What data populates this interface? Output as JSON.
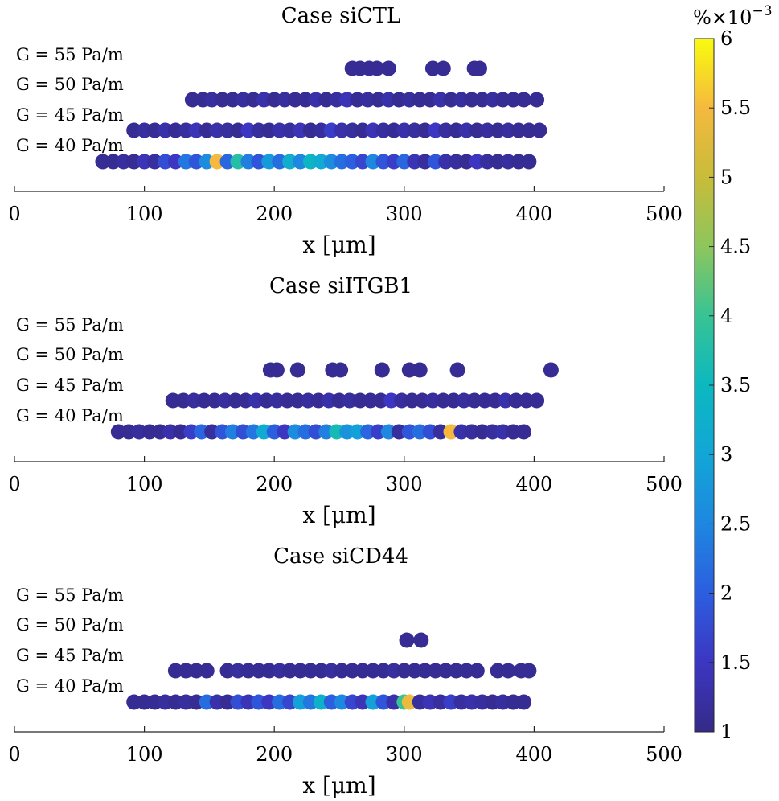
{
  "chart_data": [
    {
      "type": "scatter",
      "title": "Case siCTL",
      "xlabel": "x [μm]",
      "xlim": [
        0,
        500
      ],
      "xticks": [
        "0",
        "100",
        "200",
        "300",
        "400",
        "500"
      ],
      "rows": [
        "G = 55 Pa/m",
        "G = 50 Pa/m",
        "G = 45 Pa/m",
        "G = 40 Pa/m"
      ],
      "series": [
        {
          "row": 0,
          "x": [
            260,
            266,
            273,
            279,
            288,
            322,
            330,
            354,
            358
          ],
          "c": [
            1.1,
            1.1,
            1.1,
            1.1,
            1.1,
            1.1,
            1.1,
            1.1,
            1.1
          ]
        },
        {
          "row": 1,
          "x": [
            137,
            145,
            152,
            160,
            168,
            176,
            184,
            192,
            200,
            208,
            216,
            224,
            232,
            240,
            248,
            256,
            264,
            272,
            280,
            288,
            296,
            304,
            312,
            320,
            328,
            336,
            344,
            352,
            360,
            368,
            376,
            384,
            392,
            402
          ],
          "c": [
            1.1,
            1.1,
            1.2,
            1.1,
            1.1,
            1.2,
            1.1,
            1.3,
            1.1,
            1.2,
            1.1,
            1.1,
            1.3,
            1.1,
            1.2,
            1.4,
            1.1,
            1.2,
            1.1,
            1.3,
            1.1,
            1.2,
            1.1,
            1.1,
            1.3,
            1.1,
            1.2,
            1.1,
            1.1,
            1.2,
            1.1,
            1.1,
            1.1,
            1.1
          ]
        },
        {
          "row": 2,
          "x": [
            92,
            100,
            108,
            116,
            124,
            132,
            140,
            148,
            156,
            164,
            172,
            180,
            188,
            196,
            204,
            212,
            220,
            228,
            236,
            244,
            252,
            260,
            268,
            276,
            284,
            292,
            300,
            308,
            316,
            324,
            332,
            340,
            348,
            356,
            364,
            372,
            380,
            388,
            396,
            404
          ],
          "c": [
            1.1,
            1.2,
            1.1,
            1.3,
            1.1,
            1.2,
            1.4,
            1.1,
            1.3,
            1.2,
            1.1,
            1.5,
            1.2,
            1.1,
            1.3,
            1.2,
            1.4,
            1.1,
            1.2,
            1.6,
            1.3,
            1.2,
            1.1,
            1.4,
            1.2,
            1.1,
            1.3,
            1.2,
            1.1,
            1.5,
            1.2,
            1.1,
            1.3,
            1.1,
            1.2,
            1.1,
            1.2,
            1.1,
            1.1,
            1.1
          ]
        },
        {
          "row": 3,
          "x": [
            68,
            76,
            84,
            92,
            100,
            108,
            116,
            124,
            132,
            140,
            148,
            156,
            164,
            172,
            180,
            188,
            196,
            204,
            212,
            220,
            228,
            236,
            244,
            252,
            260,
            268,
            276,
            284,
            292,
            300,
            308,
            316,
            324,
            332,
            340,
            348,
            356,
            364,
            372,
            380,
            388,
            396
          ],
          "c": [
            1.1,
            1.1,
            1.2,
            1.1,
            1.4,
            1.2,
            1.8,
            1.5,
            2.3,
            1.9,
            2.6,
            5.5,
            2.1,
            3.8,
            2.4,
            1.9,
            2.8,
            2.2,
            3.2,
            2.5,
            3.4,
            3.1,
            2.6,
            2.2,
            2.0,
            1.7,
            2.5,
            1.9,
            1.6,
            2.1,
            1.4,
            1.2,
            1.9,
            1.3,
            1.2,
            1.1,
            1.5,
            1.2,
            1.1,
            1.2,
            1.1,
            1.1
          ]
        }
      ]
    },
    {
      "type": "scatter",
      "title": "Case siITGB1",
      "xlabel": "x [μm]",
      "xlim": [
        0,
        500
      ],
      "xticks": [
        "0",
        "100",
        "200",
        "300",
        "400",
        "500"
      ],
      "rows": [
        "G = 55 Pa/m",
        "G = 50 Pa/m",
        "G = 45 Pa/m",
        "G = 40 Pa/m"
      ],
      "series": [
        {
          "row": 1,
          "x": [
            197,
            202,
            218,
            245,
            251,
            283,
            304,
            312,
            341,
            413
          ],
          "c": [
            1.1,
            1.1,
            1.1,
            1.1,
            1.1,
            1.1,
            1.1,
            1.1,
            1.1,
            1.1
          ]
        },
        {
          "row": 2,
          "x": [
            122,
            130,
            138,
            146,
            154,
            162,
            170,
            178,
            186,
            194,
            202,
            210,
            218,
            226,
            234,
            242,
            250,
            258,
            266,
            274,
            282,
            290,
            298,
            306,
            314,
            322,
            330,
            338,
            346,
            354,
            362,
            370,
            378,
            386,
            394,
            402
          ],
          "c": [
            1.1,
            1.1,
            1.2,
            1.1,
            1.1,
            1.2,
            1.1,
            1.1,
            1.3,
            1.1,
            1.2,
            1.1,
            1.1,
            1.2,
            1.1,
            1.3,
            1.1,
            1.2,
            1.1,
            1.1,
            1.1,
            1.5,
            1.2,
            1.1,
            1.1,
            1.2,
            1.1,
            1.1,
            1.2,
            1.1,
            1.1,
            1.1,
            1.3,
            1.1,
            1.1,
            1.1
          ]
        },
        {
          "row": 3,
          "x": [
            80,
            88,
            96,
            104,
            112,
            120,
            128,
            136,
            144,
            152,
            160,
            168,
            176,
            184,
            192,
            200,
            208,
            216,
            224,
            232,
            240,
            248,
            256,
            264,
            272,
            280,
            288,
            296,
            304,
            312,
            320,
            328,
            336,
            344,
            352,
            360,
            368,
            376,
            384,
            392
          ],
          "c": [
            1.1,
            1.1,
            1.2,
            1.1,
            1.1,
            1.3,
            1.1,
            1.6,
            2.1,
            1.2,
            1.9,
            2.4,
            1.8,
            2.3,
            3.1,
            2.0,
            1.5,
            2.6,
            2.2,
            1.8,
            2.4,
            3.6,
            2.7,
            2.9,
            2.1,
            1.6,
            2.5,
            1.2,
            1.9,
            2.2,
            1.8,
            1.2,
            5.5,
            1.3,
            1.2,
            1.1,
            1.2,
            1.3,
            1.1,
            1.1
          ]
        }
      ]
    },
    {
      "type": "scatter",
      "title": "Case siCD44",
      "xlabel": "x [μm]",
      "xlim": [
        0,
        500
      ],
      "xticks": [
        "0",
        "100",
        "200",
        "300",
        "400",
        "500"
      ],
      "rows": [
        "G = 55 Pa/m",
        "G = 50 Pa/m",
        "G = 45 Pa/m",
        "G = 40 Pa/m"
      ],
      "series": [
        {
          "row": 1,
          "x": [
            302,
            313
          ],
          "c": [
            1.1,
            1.1
          ]
        },
        {
          "row": 2,
          "x": [
            124,
            132,
            140,
            148,
            164,
            172,
            180,
            188,
            196,
            204,
            212,
            220,
            228,
            236,
            244,
            252,
            260,
            268,
            276,
            284,
            292,
            300,
            308,
            316,
            324,
            332,
            340,
            348,
            356,
            372,
            380,
            390,
            396
          ],
          "c": [
            1.1,
            1.1,
            1.1,
            1.1,
            1.1,
            1.2,
            1.1,
            1.1,
            1.1,
            1.2,
            1.1,
            1.1,
            1.1,
            1.1,
            1.2,
            1.1,
            1.1,
            1.1,
            1.1,
            1.1,
            1.2,
            1.1,
            1.1,
            1.1,
            1.1,
            1.1,
            1.1,
            1.1,
            1.1,
            1.1,
            1.1,
            1.1,
            1.1
          ]
        },
        {
          "row": 3,
          "x": [
            92,
            100,
            108,
            116,
            124,
            132,
            140,
            148,
            156,
            164,
            172,
            180,
            188,
            196,
            204,
            212,
            220,
            228,
            236,
            244,
            252,
            260,
            268,
            276,
            284,
            292,
            300,
            304,
            312,
            320,
            328,
            336,
            344,
            352,
            360,
            368,
            376,
            384,
            392
          ],
          "c": [
            1.1,
            1.1,
            1.1,
            1.2,
            1.1,
            1.2,
            1.1,
            2.2,
            1.3,
            1.1,
            1.8,
            1.4,
            1.9,
            1.5,
            2.2,
            1.7,
            2.9,
            2.3,
            3.3,
            2.0,
            2.5,
            1.7,
            1.4,
            2.9,
            1.9,
            1.3,
            4.0,
            5.4,
            1.2,
            1.4,
            1.2,
            1.6,
            1.2,
            1.3,
            1.2,
            1.1,
            1.2,
            1.1,
            1.1
          ]
        }
      ]
    }
  ],
  "colorbar": {
    "label": "%×10",
    "exponent": "−3",
    "min": 1,
    "max": 6,
    "ticks": [
      "1",
      "1.5",
      "2",
      "2.5",
      "3",
      "3.5",
      "4",
      "4.5",
      "5",
      "5.5",
      "6"
    ]
  }
}
